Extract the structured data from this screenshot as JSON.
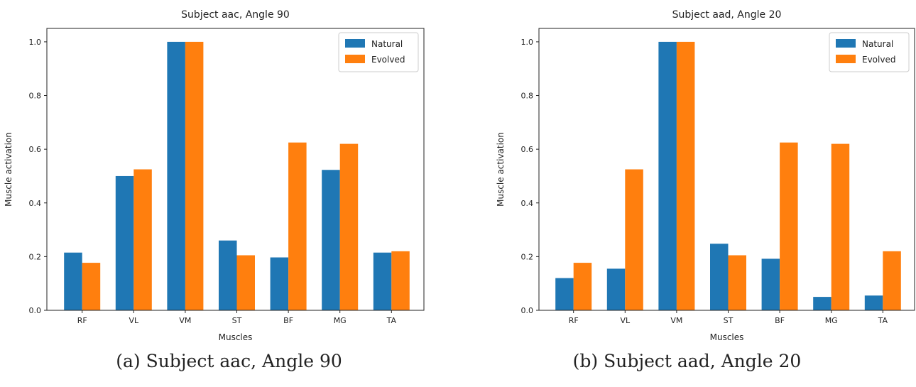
{
  "chart_data": [
    {
      "type": "bar",
      "title": "Subject aac, Angle 90",
      "xlabel": "Muscles",
      "ylabel": "Muscle activation",
      "caption": "(a) Subject aac, Angle 90",
      "categories": [
        "RF",
        "VL",
        "VM",
        "ST",
        "BF",
        "MG",
        "TA"
      ],
      "ylim": [
        0,
        1.05
      ],
      "yticks": [
        "0.0",
        "0.2",
        "0.4",
        "0.6",
        "0.8",
        "1.0"
      ],
      "grid": false,
      "legend_position": "top-right",
      "series": [
        {
          "name": "Natural",
          "color": "#1f77b4",
          "values": [
            0.215,
            0.5,
            1.0,
            0.26,
            0.197,
            0.523,
            0.215
          ]
        },
        {
          "name": "Evolved",
          "color": "#ff7f0e",
          "values": [
            0.177,
            0.525,
            1.0,
            0.205,
            0.625,
            0.62,
            0.22
          ]
        }
      ]
    },
    {
      "type": "bar",
      "title": "Subject aad, Angle 20",
      "xlabel": "Muscles",
      "ylabel": "Muscle activation",
      "caption": "(b) Subject aad, Angle 20",
      "categories": [
        "RF",
        "VL",
        "VM",
        "ST",
        "BF",
        "MG",
        "TA"
      ],
      "ylim": [
        0,
        1.05
      ],
      "yticks": [
        "0.0",
        "0.2",
        "0.4",
        "0.6",
        "0.8",
        "1.0"
      ],
      "grid": false,
      "legend_position": "top-right",
      "series": [
        {
          "name": "Natural",
          "color": "#1f77b4",
          "values": [
            0.12,
            0.155,
            1.0,
            0.248,
            0.192,
            0.05,
            0.055
          ]
        },
        {
          "name": "Evolved",
          "color": "#ff7f0e",
          "values": [
            0.177,
            0.525,
            1.0,
            0.205,
            0.625,
            0.62,
            0.22
          ]
        }
      ]
    }
  ]
}
